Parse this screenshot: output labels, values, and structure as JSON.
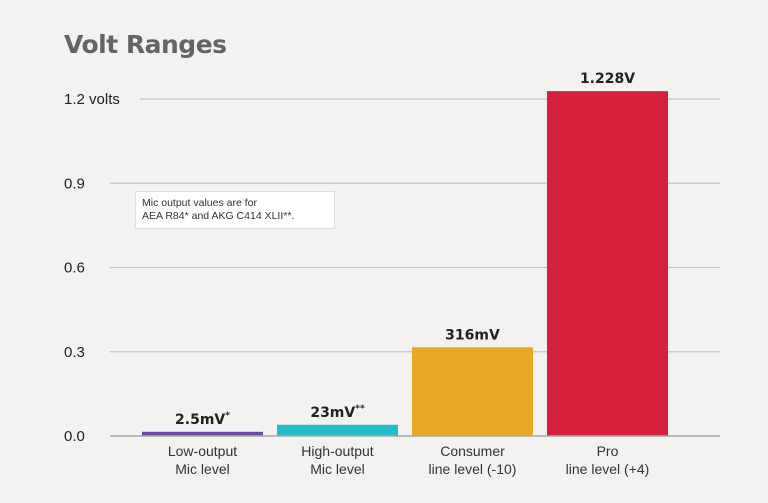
{
  "chart_data": {
    "type": "bar",
    "title": "Volt Ranges",
    "ylabel": "",
    "xlabel": "",
    "ylim": [
      0,
      1.2
    ],
    "yticks": [
      {
        "value": 0.0,
        "label": "0.0"
      },
      {
        "value": 0.3,
        "label": "0.3"
      },
      {
        "value": 0.6,
        "label": "0.6"
      },
      {
        "value": 0.9,
        "label": "0.9"
      },
      {
        "value": 1.2,
        "label": "1.2 volts"
      }
    ],
    "grid": true,
    "categories": [
      [
        "Low-output",
        "Mic level"
      ],
      [
        "High-output",
        "Mic level"
      ],
      [
        "Consumer",
        "line level (-10)"
      ],
      [
        "Pro",
        "line level (+4)"
      ]
    ],
    "values": [
      0.0025,
      0.023,
      0.316,
      1.228
    ],
    "data_labels": [
      {
        "text": "2.5mV",
        "sup": "*"
      },
      {
        "text": "23mV",
        "sup": "**"
      },
      {
        "text": "316mV",
        "sup": ""
      },
      {
        "text": "1.228V",
        "sup": ""
      }
    ],
    "colors": [
      "#6a4a9c",
      "#22bccb",
      "#e8a823",
      "#d71f3e"
    ],
    "annotation": [
      "Mic output values are for",
      "AEA R84* and AKG C414 XLII**."
    ]
  }
}
